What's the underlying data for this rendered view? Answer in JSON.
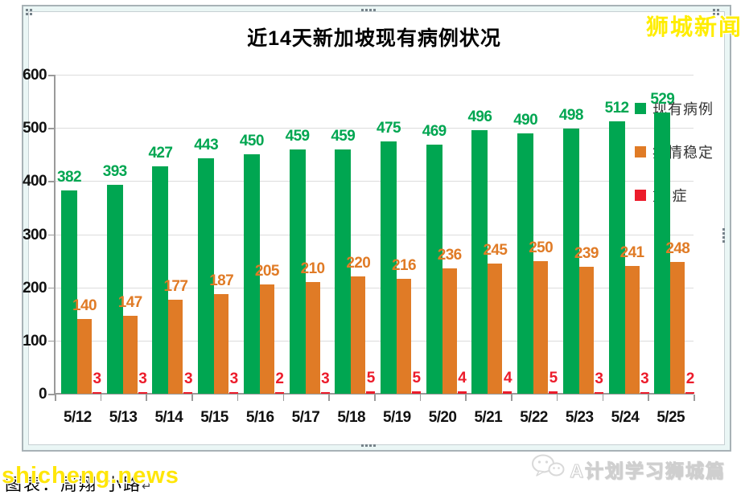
{
  "masthead": {
    "site_label": "狮城新闻"
  },
  "chart_data": {
    "type": "bar",
    "title": "近14天新加坡现有病例状况",
    "categories": [
      "5/12",
      "5/13",
      "5/14",
      "5/15",
      "5/16",
      "5/17",
      "5/18",
      "5/19",
      "5/20",
      "5/21",
      "5/22",
      "5/23",
      "5/24",
      "5/25"
    ],
    "series": [
      {
        "key": "active-cases",
        "name": "现有病例",
        "color": "#00a651",
        "values": [
          382,
          393,
          427,
          443,
          450,
          459,
          459,
          475,
          469,
          496,
          490,
          498,
          512,
          529
        ]
      },
      {
        "key": "stable-condition",
        "name": "病情稳定",
        "color": "#e07b26",
        "values": [
          140,
          147,
          177,
          187,
          205,
          210,
          220,
          216,
          236,
          245,
          250,
          239,
          241,
          248
        ]
      },
      {
        "key": "severe-cases",
        "name": "重 症",
        "color": "#ec1c2b",
        "values": [
          3,
          3,
          3,
          3,
          2,
          3,
          5,
          5,
          4,
          4,
          5,
          3,
          3,
          2
        ]
      }
    ],
    "xlabel": "",
    "ylabel": "",
    "ylim": [
      0,
      600
    ],
    "yticks": [
      0,
      100,
      200,
      300,
      400,
      500,
      600
    ],
    "grid": true,
    "legend_position": "right"
  },
  "colors": {
    "grid": "#dcdcdc",
    "axis": "#9a9a9a"
  },
  "footer": {
    "credit_text": "图表：周翔·小路",
    "return_mark": "↵",
    "watermark": "shicheng.news",
    "brand_label": "A计划学习狮城篇"
  }
}
